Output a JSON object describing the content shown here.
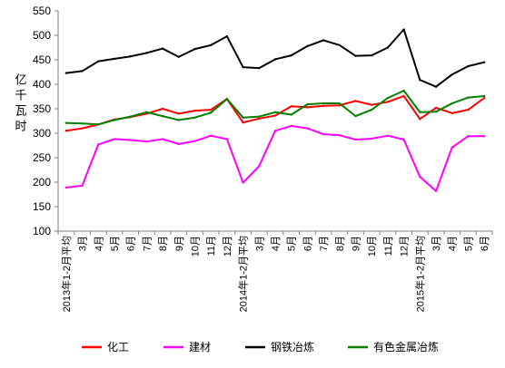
{
  "chart_data": {
    "type": "line",
    "title": "",
    "ylabel": "亿千瓦时",
    "xlabel": "",
    "ylim": [
      100,
      550
    ],
    "yticks": [
      100,
      150,
      200,
      250,
      300,
      350,
      400,
      450,
      500,
      550
    ],
    "grid": false,
    "legend_position": "bottom",
    "categories": [
      "2013年1-2月平均",
      "3月",
      "4月",
      "5月",
      "6月",
      "7月",
      "8月",
      "9月",
      "10月",
      "11月",
      "12月",
      "2014年1-2月平均",
      "3月",
      "4月",
      "5月",
      "6月",
      "7月",
      "8月",
      "9月",
      "10月",
      "11月",
      "12月",
      "2015年1-2月平均",
      "3月",
      "4月",
      "5月",
      "6月"
    ],
    "series": [
      {
        "name": "化工",
        "color": "#ff0000",
        "values": [
          305,
          310,
          318,
          328,
          333,
          340,
          350,
          340,
          346,
          348,
          370,
          322,
          330,
          336,
          355,
          353,
          356,
          357,
          366,
          358,
          364,
          376,
          329,
          352,
          341,
          348,
          372
        ]
      },
      {
        "name": "建材",
        "color": "#ff00ff",
        "values": [
          189,
          193,
          277,
          288,
          286,
          283,
          288,
          278,
          284,
          295,
          288,
          199,
          233,
          305,
          315,
          310,
          298,
          296,
          287,
          289,
          295,
          287,
          211,
          182,
          271,
          294,
          294
        ]
      },
      {
        "name": "钢铁冶炼",
        "color": "#000000",
        "values": [
          423,
          427,
          447,
          452,
          457,
          464,
          473,
          456,
          472,
          480,
          498,
          435,
          433,
          451,
          459,
          478,
          490,
          480,
          458,
          459,
          475,
          512,
          409,
          395,
          420,
          437,
          445
        ]
      },
      {
        "name": "有色金属冶炼",
        "color": "#008000",
        "values": [
          321,
          320,
          318,
          327,
          334,
          343,
          335,
          327,
          332,
          342,
          370,
          332,
          334,
          343,
          338,
          359,
          361,
          361,
          335,
          348,
          372,
          387,
          343,
          344,
          361,
          373,
          376
        ]
      }
    ]
  }
}
